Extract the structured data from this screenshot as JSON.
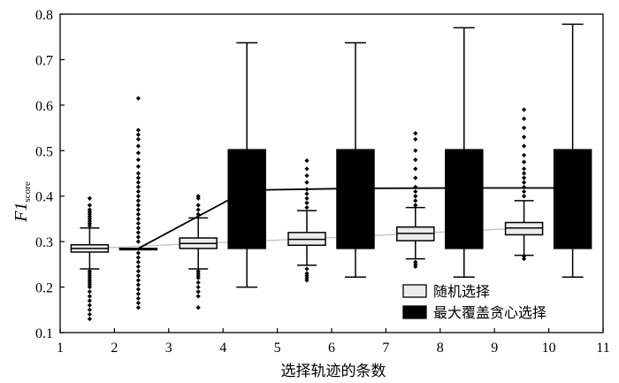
{
  "chart_data": {
    "type": "box",
    "xlabel": "选择轨迹的条数",
    "ylabel_main": "F1",
    "ylabel_sub": "score",
    "xlim": [
      1,
      11
    ],
    "ylim": [
      0.1,
      0.8
    ],
    "xticks": [
      1,
      2,
      3,
      4,
      5,
      6,
      7,
      8,
      9,
      10,
      11
    ],
    "yticks": [
      0.1,
      0.2,
      0.3,
      0.4,
      0.5,
      0.6,
      0.7,
      0.8
    ],
    "legend_position": "bottom-right",
    "series": [
      {
        "name": "随机选择",
        "fill": "#ececec",
        "mean_line_color": "#c8c8c8",
        "boxes": [
          {
            "x": 2,
            "q1": 0.277,
            "median": 0.285,
            "q3": 0.293,
            "whisker_low": 0.24,
            "whisker_high": 0.33,
            "mean": 0.285,
            "outliers": [
              0.13,
              0.14,
              0.15,
              0.16,
              0.17,
              0.18,
              0.19,
              0.2,
              0.205,
              0.21,
              0.215,
              0.22,
              0.225,
              0.23,
              0.235,
              0.335,
              0.34,
              0.345,
              0.35,
              0.355,
              0.36,
              0.365,
              0.37,
              0.38,
              0.395
            ]
          },
          {
            "x": 4,
            "q1": 0.285,
            "median": 0.296,
            "q3": 0.308,
            "whisker_low": 0.24,
            "whisker_high": 0.352,
            "mean": 0.296,
            "outliers": [
              0.155,
              0.18,
              0.19,
              0.2,
              0.21,
              0.22,
              0.225,
              0.23,
              0.235,
              0.36,
              0.37,
              0.38,
              0.395,
              0.4
            ]
          },
          {
            "x": 6,
            "q1": 0.292,
            "median": 0.305,
            "q3": 0.32,
            "whisker_low": 0.248,
            "whisker_high": 0.368,
            "mean": 0.306,
            "outliers": [
              0.215,
              0.22,
              0.225,
              0.23,
              0.24,
              0.375,
              0.385,
              0.395,
              0.405,
              0.415,
              0.43,
              0.445,
              0.46,
              0.478
            ]
          },
          {
            "x": 8,
            "q1": 0.302,
            "median": 0.318,
            "q3": 0.332,
            "whisker_low": 0.262,
            "whisker_high": 0.375,
            "mean": 0.318,
            "outliers": [
              0.245,
              0.25,
              0.255,
              0.38,
              0.39,
              0.4,
              0.41,
              0.42,
              0.44,
              0.46,
              0.48,
              0.5,
              0.525,
              0.538
            ]
          },
          {
            "x": 10,
            "q1": 0.315,
            "median": 0.33,
            "q3": 0.342,
            "whisker_low": 0.27,
            "whisker_high": 0.39,
            "mean": 0.33,
            "outliers": [
              0.262,
              0.268,
              0.4,
              0.41,
              0.42,
              0.43,
              0.44,
              0.45,
              0.46,
              0.475,
              0.49,
              0.51,
              0.53,
              0.55,
              0.57,
              0.59
            ]
          }
        ]
      },
      {
        "name": "最大覆盖贪心选择",
        "fill": "#000000",
        "mean_line_color": "#000000",
        "boxes": [
          {
            "x": 2,
            "q1": 0.285,
            "median": 0.285,
            "q3": 0.285,
            "whisker_low": 0.285,
            "whisker_high": 0.285,
            "mean": 0.285,
            "outliers": [
              0.155,
              0.165,
              0.175,
              0.185,
              0.195,
              0.205,
              0.215,
              0.225,
              0.235,
              0.245,
              0.255,
              0.265,
              0.275,
              0.3,
              0.31,
              0.32,
              0.33,
              0.34,
              0.35,
              0.36,
              0.37,
              0.38,
              0.39,
              0.4,
              0.41,
              0.42,
              0.43,
              0.44,
              0.45,
              0.465,
              0.48,
              0.495,
              0.51,
              0.525,
              0.535,
              0.545,
              0.615
            ]
          },
          {
            "x": 4,
            "q1": 0.285,
            "median": 0.41,
            "q3": 0.502,
            "whisker_low": 0.2,
            "whisker_high": 0.737,
            "mean": 0.413,
            "outliers": []
          },
          {
            "x": 6,
            "q1": 0.285,
            "median": 0.41,
            "q3": 0.502,
            "whisker_low": 0.222,
            "whisker_high": 0.737,
            "mean": 0.417,
            "outliers": []
          },
          {
            "x": 8,
            "q1": 0.285,
            "median": 0.41,
            "q3": 0.502,
            "whisker_low": 0.222,
            "whisker_high": 0.77,
            "mean": 0.418,
            "outliers": []
          },
          {
            "x": 10,
            "q1": 0.285,
            "median": 0.41,
            "q3": 0.502,
            "whisker_low": 0.222,
            "whisker_high": 0.778,
            "mean": 0.418,
            "outliers": []
          }
        ]
      }
    ]
  }
}
